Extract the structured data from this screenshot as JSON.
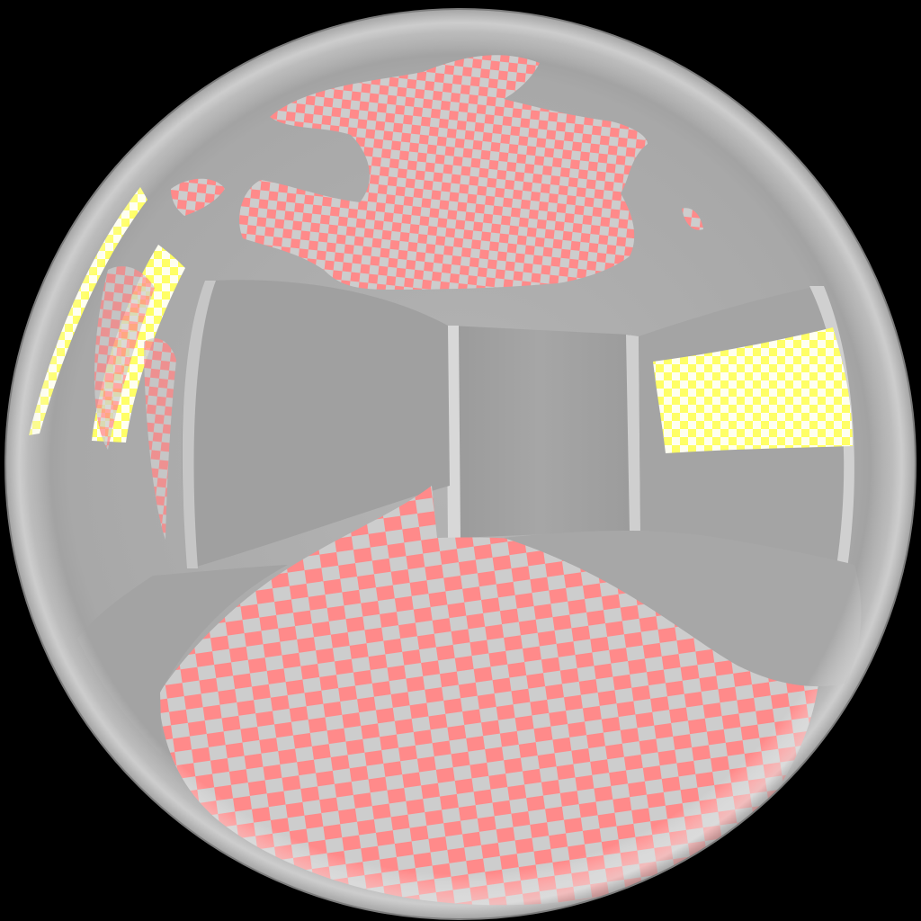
{
  "colors": {
    "background": "#000000",
    "sphere_base": "#a9a9a9",
    "sphere_dark": "#8e8e8e",
    "sphere_light": "#d6d6d6",
    "wall_gray": "#a2a2a2",
    "checker_gray": "#cdcdcd",
    "checker_pink": "#ff8a8a",
    "checker_yellow": "#ffff66",
    "checker_white": "#fffff0"
  },
  "scene": {
    "subject": "mirrored-sphere",
    "reflected_room": true,
    "reflected_patterns": [
      "pink-checker-floor",
      "pink-checker-ceiling",
      "yellow-checker-window-right",
      "yellow-checker-window-left"
    ]
  }
}
